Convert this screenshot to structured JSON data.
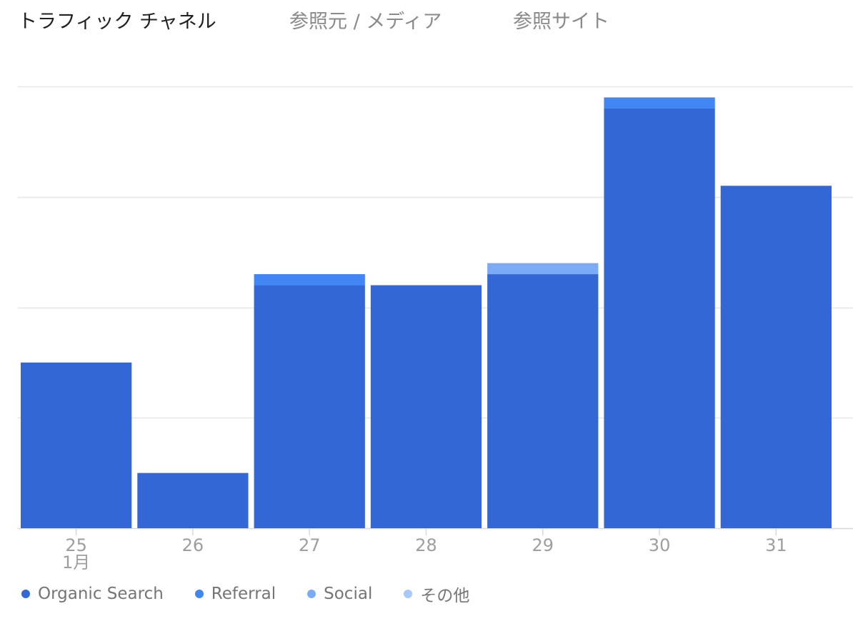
{
  "tabs": [
    {
      "label": "トラフィック チャネル",
      "active": true
    },
    {
      "label": "参照元 / メディア",
      "active": false
    },
    {
      "label": "参照サイト",
      "active": false
    }
  ],
  "chart_data": {
    "type": "bar",
    "stacked": true,
    "categories": [
      "25",
      "26",
      "27",
      "28",
      "29",
      "30",
      "31"
    ],
    "category_sublabels": [
      "1月",
      "",
      "",
      "",
      "",
      "",
      ""
    ],
    "series": [
      {
        "name": "Organic Search",
        "color": "#3367d6",
        "values": [
          15,
          5,
          22,
          22,
          23,
          38,
          31
        ]
      },
      {
        "name": "Referral",
        "color": "#4285f4",
        "values": [
          0,
          0,
          1,
          0,
          0,
          1,
          0
        ]
      },
      {
        "name": "Social",
        "color": "#7baaf7",
        "values": [
          0,
          0,
          0,
          0,
          1,
          0,
          0
        ]
      },
      {
        "name": "その他",
        "color": "#a8c7fa",
        "values": [
          0,
          0,
          0,
          0,
          0,
          0,
          0
        ]
      }
    ],
    "ylim": [
      0,
      40
    ],
    "grid": true,
    "legend_position": "bottom-left"
  }
}
